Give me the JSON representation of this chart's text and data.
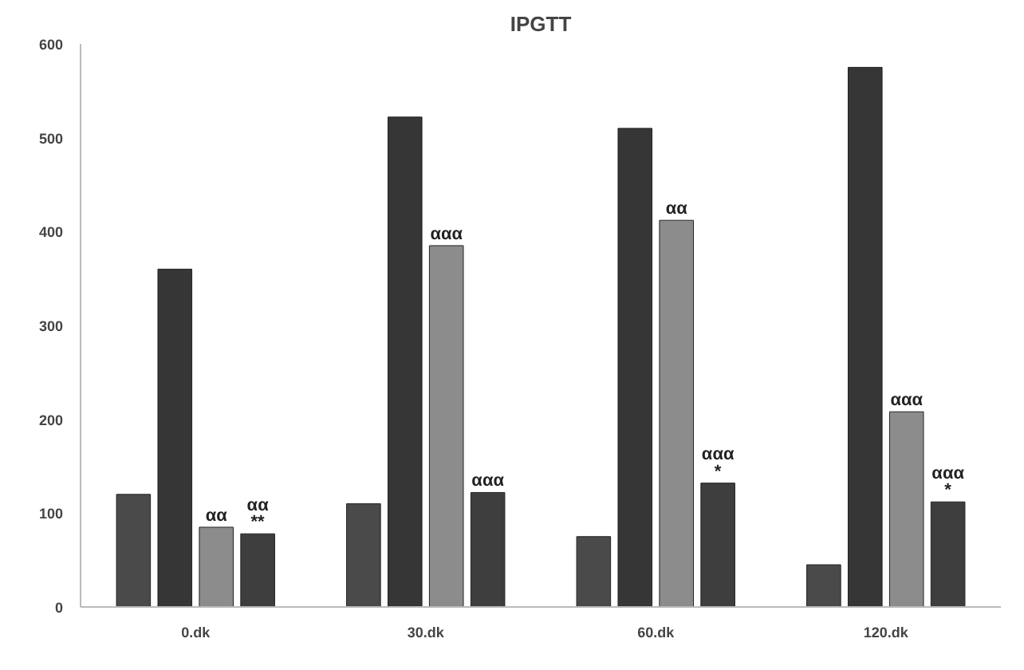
{
  "chart_data": {
    "type": "bar",
    "title": "IPGTT",
    "categories": [
      "0.dk",
      "30.dk",
      "60.dk",
      "120.dk"
    ],
    "series": [
      {
        "color": "#4a4a4a",
        "values": [
          120,
          110,
          75,
          45
        ]
      },
      {
        "color": "#363636",
        "values": [
          360,
          522,
          510,
          575
        ]
      },
      {
        "color": "#8c8c8c",
        "values": [
          85,
          385,
          412,
          208
        ]
      },
      {
        "color": "#3e3e3e",
        "values": [
          78,
          122,
          132,
          112
        ]
      }
    ],
    "ylim": [
      0,
      600
    ],
    "yticks": [
      0,
      100,
      200,
      300,
      400,
      500,
      600
    ],
    "grid": false,
    "annotations": [
      {
        "text": "αα",
        "x": "0.dk",
        "y": 85
      },
      {
        "text": "αα\n**",
        "x": "0.dk",
        "y": 78
      },
      {
        "text": "ααα",
        "x": "30.dk",
        "y": 385
      },
      {
        "text": "ααα",
        "x": "30.dk",
        "y": 122
      },
      {
        "text": "αα",
        "x": "60.dk",
        "y": 412
      },
      {
        "text": "ααα\n*",
        "x": "60.dk",
        "y": 132
      },
      {
        "text": "ααα",
        "x": "120.dk",
        "y": 208
      },
      {
        "text": "ααα\n*",
        "x": "120.dk",
        "y": 112
      }
    ]
  }
}
